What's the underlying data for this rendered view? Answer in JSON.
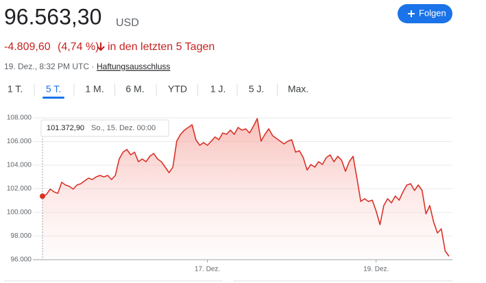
{
  "header": {
    "price": "96.563,30",
    "currency": "USD",
    "change": "-4.809,60",
    "change_pct": "(4,74 %)",
    "period": "in den letzten 5 Tagen",
    "timestamp": "19. Dez., 8:32 PM UTC ·",
    "disclaimer": "Haftungsausschluss",
    "follow": "Folgen"
  },
  "tabs": [
    "1 T.",
    "5 T.",
    "1 M.",
    "6 M.",
    "YTD",
    "1 J.",
    "5 J.",
    "Max."
  ],
  "selected_tab": 1,
  "tooltip": {
    "value": "101.372,90",
    "date": "So., 15. Dez. 00:00"
  },
  "chart_data": {
    "type": "line",
    "color": "#d93025",
    "grid": true,
    "xlim": [
      0,
      106
    ],
    "xticks": [
      {
        "value": 43,
        "label": "17. Dez."
      },
      {
        "value": 87,
        "label": "19. Dez."
      }
    ],
    "ylim": [
      96000,
      108000
    ],
    "yticks": [
      {
        "value": 96000,
        "label": "96.000"
      },
      {
        "value": 98000,
        "label": "98.000"
      },
      {
        "value": 100000,
        "label": "100.000"
      },
      {
        "value": 102000,
        "label": "102.000"
      },
      {
        "value": 104000,
        "label": "104.000"
      },
      {
        "value": 106000,
        "label": "106.000"
      },
      {
        "value": 108000,
        "label": "108.000"
      }
    ],
    "values": [
      101372.9,
      101510,
      101970,
      101740,
      101620,
      102550,
      102320,
      102200,
      101970,
      102320,
      102430,
      102670,
      102900,
      102780,
      103010,
      103130,
      103010,
      103130,
      102780,
      103130,
      104520,
      105100,
      105330,
      104870,
      105100,
      104290,
      104520,
      104290,
      104750,
      104990,
      104520,
      104290,
      103830,
      103360,
      103830,
      106030,
      106610,
      106960,
      107190,
      107420,
      106150,
      105680,
      105910,
      105680,
      106030,
      106380,
      106150,
      106720,
      106610,
      106960,
      106610,
      107190,
      106960,
      107070,
      106720,
      107300,
      107940,
      106030,
      106610,
      107070,
      106490,
      106260,
      106030,
      105800,
      106030,
      106150,
      105100,
      105220,
      104640,
      103590,
      104060,
      103830,
      104290,
      104060,
      104640,
      104870,
      104290,
      104750,
      104410,
      103480,
      104290,
      104750,
      102900,
      100930,
      101160,
      100930,
      101040,
      100120,
      98960,
      100580,
      101160,
      100810,
      101390,
      101040,
      101740,
      102320,
      102430,
      101860,
      102320,
      101860,
      99880,
      100580,
      99190,
      98260,
      98610,
      96750,
      96290
    ]
  }
}
